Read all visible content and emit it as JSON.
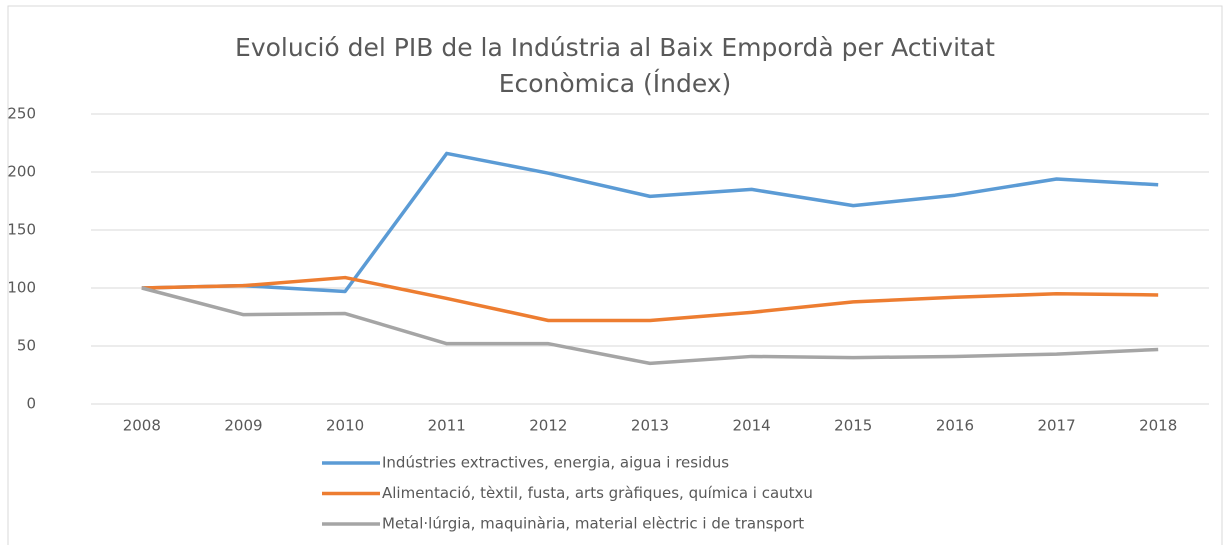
{
  "chart_data": {
    "type": "line",
    "title": "Evolució del PIB de la Indústria al Baix Empordà per Activitat Econòmica (Índex)",
    "categories": [
      "2008",
      "2009",
      "2010",
      "2011",
      "2012",
      "2013",
      "2014",
      "2015",
      "2016",
      "2017",
      "2018"
    ],
    "series": [
      {
        "name": "Indústries extractives, energia, aigua i residus",
        "color": "#5b9bd5",
        "values": [
          100,
          102,
          97,
          216,
          199,
          179,
          185,
          171,
          180,
          194,
          189
        ]
      },
      {
        "name": "Alimentació, tèxtil, fusta, arts gràfiques, química i cautxu",
        "color": "#ed7d31",
        "values": [
          100,
          102,
          109,
          91,
          72,
          72,
          79,
          88,
          92,
          95,
          94
        ]
      },
      {
        "name": "Metal·lúrgia, maquinària, material elèctric i de transport",
        "color": "#a5a5a5",
        "values": [
          100,
          77,
          78,
          52,
          52,
          35,
          41,
          40,
          41,
          43,
          47
        ]
      }
    ],
    "ylim": [
      0,
      250
    ],
    "yticks": [
      0,
      50,
      100,
      150,
      200,
      250
    ],
    "grid": true,
    "legend": "bottom"
  }
}
